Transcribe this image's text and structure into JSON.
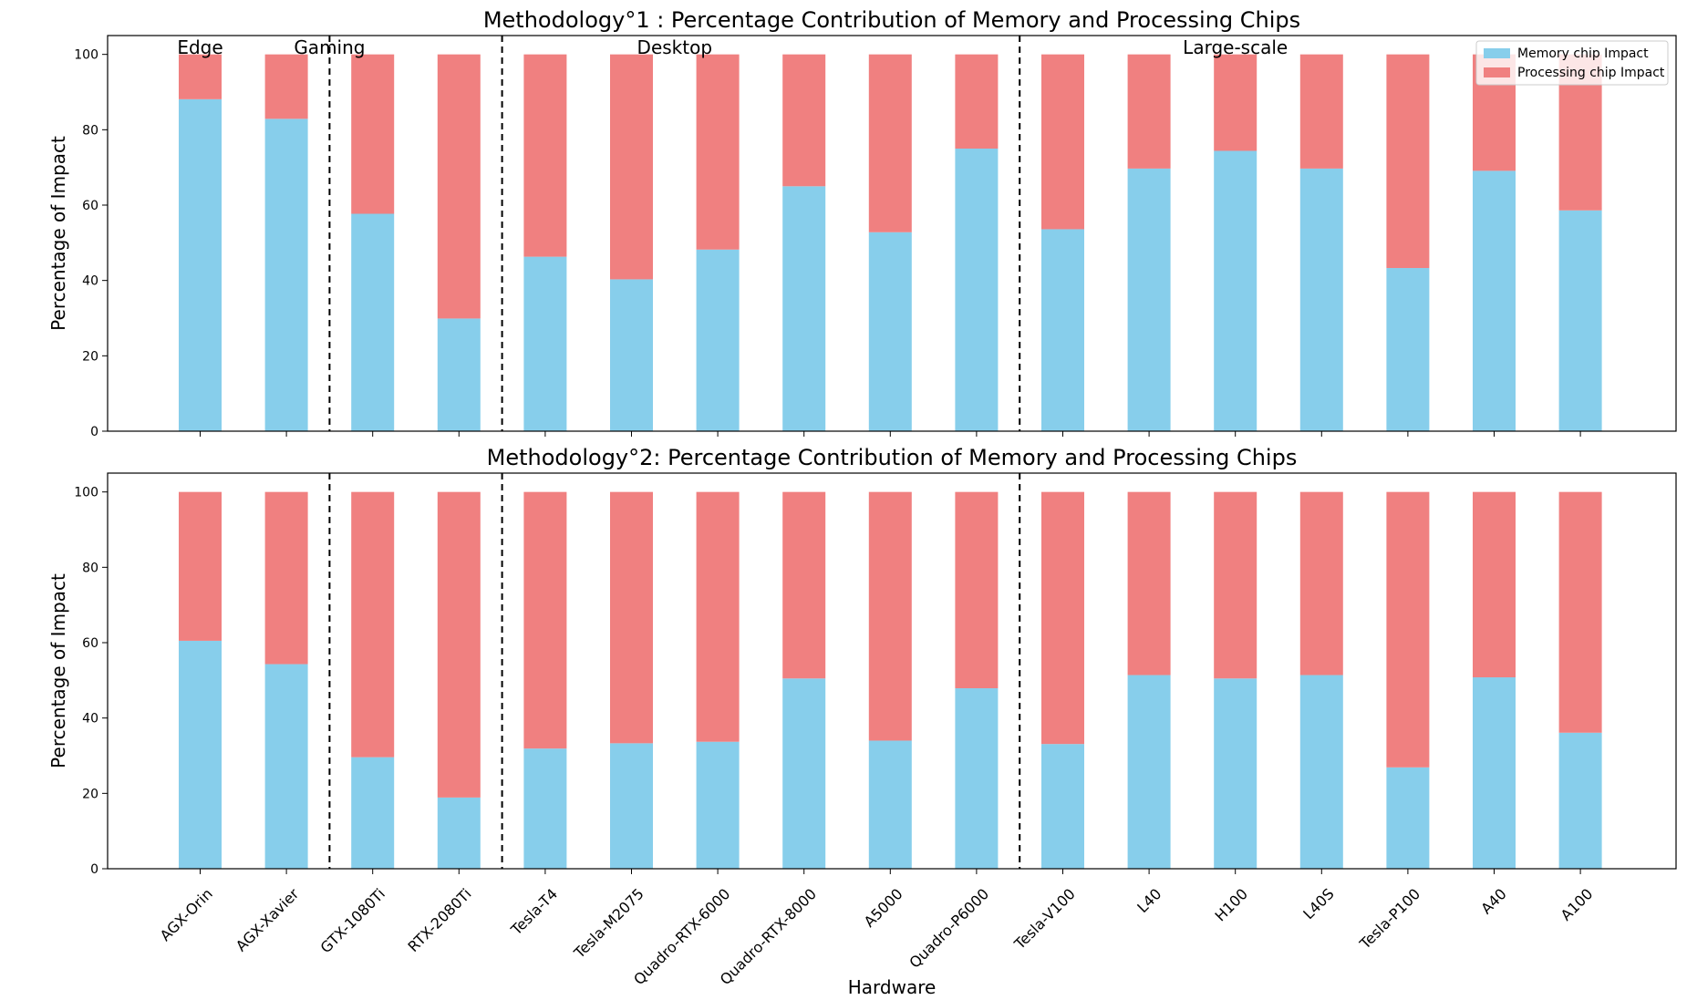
{
  "chart_data": [
    {
      "type": "bar",
      "stacked": true,
      "title": "Methodology°1 : Percentage Contribution of Memory and Processing Chips",
      "ylabel": "Percentage of Impact",
      "xlabel": "",
      "ylim": [
        0,
        105
      ],
      "yticks": [
        "0",
        "20",
        "40",
        "60",
        "80",
        "100"
      ],
      "grid": false,
      "legend_position": "top-right",
      "categories": [
        "AGX-Orin",
        "AGX-Xavier",
        "GTX-1080Ti",
        "RTX-2080Ti",
        "Tesla-T4",
        "Tesla-M2075",
        "Quadro-RTX-6000",
        "Quadro-RTX-8000",
        "A5000",
        "Quadro-P6000",
        "Tesla-V100",
        "L40",
        "H100",
        "L40S",
        "Tesla-P100",
        "A40",
        "A100"
      ],
      "series": [
        {
          "name": "Memory chip Impact",
          "color": "#87ceeb",
          "values": [
            88.1,
            82.9,
            57.7,
            29.9,
            46.3,
            40.3,
            48.2,
            65.0,
            52.8,
            75.0,
            53.6,
            69.7,
            74.4,
            69.7,
            43.3,
            69.1,
            58.6
          ]
        },
        {
          "name": "Processing chip Impact",
          "color": "#f08080",
          "values": [
            11.9,
            17.1,
            42.3,
            70.1,
            53.7,
            59.7,
            51.8,
            35.0,
            47.2,
            25.0,
            46.4,
            30.3,
            25.6,
            30.3,
            56.7,
            30.9,
            41.4
          ]
        }
      ],
      "group_separators_after_index": [
        1,
        3,
        9
      ],
      "group_labels": [
        {
          "text": "Edge",
          "center_index": 0
        },
        {
          "text": "Gaming",
          "center_index": 1.5
        },
        {
          "text": "Desktop",
          "center_index": 5.5
        },
        {
          "text": "Large-scale",
          "center_index": 12.0
        }
      ]
    },
    {
      "type": "bar",
      "stacked": true,
      "title": "Methodology°2: Percentage Contribution of Memory and Processing Chips",
      "ylabel": "Percentage of Impact",
      "xlabel": "Hardware",
      "ylim": [
        0,
        105
      ],
      "yticks": [
        "0",
        "20",
        "40",
        "60",
        "80",
        "100"
      ],
      "grid": false,
      "categories": [
        "AGX-Orin",
        "AGX-Xavier",
        "GTX-1080Ti",
        "RTX-2080Ti",
        "Tesla-T4",
        "Tesla-M2075",
        "Quadro-RTX-6000",
        "Quadro-RTX-8000",
        "A5000",
        "Quadro-P6000",
        "Tesla-V100",
        "L40",
        "H100",
        "L40S",
        "Tesla-P100",
        "A40",
        "A100"
      ],
      "series": [
        {
          "name": "Memory chip Impact",
          "color": "#87ceeb",
          "values": [
            60.5,
            54.3,
            29.6,
            18.9,
            31.9,
            33.3,
            33.7,
            50.5,
            34.0,
            47.9,
            33.1,
            51.4,
            50.5,
            51.4,
            26.9,
            50.8,
            36.1
          ]
        },
        {
          "name": "Processing chip Impact",
          "color": "#f08080",
          "values": [
            39.5,
            45.7,
            70.4,
            81.1,
            68.1,
            66.7,
            66.3,
            49.5,
            66.0,
            52.1,
            66.9,
            48.6,
            49.5,
            48.6,
            73.1,
            49.2,
            63.9
          ]
        }
      ],
      "group_separators_after_index": [
        1,
        3,
        9
      ]
    }
  ]
}
